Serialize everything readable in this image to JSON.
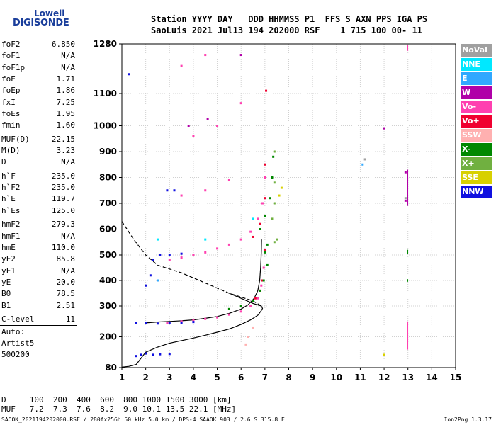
{
  "logo": {
    "line1": "Lowell",
    "line2": "DIGISONDE"
  },
  "header": {
    "line1": "Station YYYY DAY   DDD HHMMSS P1  FFS S AXN PPS IGA PS",
    "line2": "SaoLuis 2021 Jul13 194 202000 RSF    1 715 100 00- 11"
  },
  "params": {
    "group1": [
      {
        "k": "foF2",
        "v": "6.850"
      },
      {
        "k": "foF1",
        "v": "N/A"
      },
      {
        "k": "foF1p",
        "v": "N/A"
      },
      {
        "k": "foE",
        "v": "1.71"
      },
      {
        "k": "foEp",
        "v": "1.86"
      },
      {
        "k": "fxI",
        "v": "7.25"
      },
      {
        "k": "foEs",
        "v": "1.95"
      },
      {
        "k": "fmin",
        "v": "1.60"
      }
    ],
    "group2": [
      {
        "k": "MUF(D)",
        "v": "22.15"
      },
      {
        "k": "M(D)",
        "v": "3.23"
      },
      {
        "k": "D",
        "v": "N/A"
      }
    ],
    "group3": [
      {
        "k": "h`F",
        "v": "235.0"
      },
      {
        "k": "h`F2",
        "v": "235.0"
      },
      {
        "k": "h`E",
        "v": "119.7"
      },
      {
        "k": "h`Es",
        "v": "125.0"
      }
    ],
    "group4": [
      {
        "k": "hmF2",
        "v": "279.3"
      },
      {
        "k": "hmF1",
        "v": "N/A"
      },
      {
        "k": "hmE",
        "v": "110.0"
      },
      {
        "k": "yF2",
        "v": "85.8"
      },
      {
        "k": "yF1",
        "v": "N/A"
      },
      {
        "k": "yE",
        "v": "20.0"
      },
      {
        "k": "B0",
        "v": "78.5"
      },
      {
        "k": "B1",
        "v": "2.51"
      }
    ],
    "group5": [
      {
        "k": "C-level",
        "v": "11"
      }
    ],
    "auto_label": "Auto:",
    "artist": "Artist5",
    "code": "500200"
  },
  "legend": [
    {
      "label": "NoVal",
      "color": "#a0a0a0"
    },
    {
      "label": "NNE",
      "color": "#00e8ff"
    },
    {
      "label": "E",
      "color": "#30a8ff"
    },
    {
      "label": "W",
      "color": "#b000a8"
    },
    {
      "label": "Vo-",
      "color": "#ff40b0"
    },
    {
      "label": "Vo+",
      "color": "#f00030"
    },
    {
      "label": "SSW",
      "color": "#ffb0b0"
    },
    {
      "label": "X-",
      "color": "#008800"
    },
    {
      "label": "X+",
      "color": "#70b040"
    },
    {
      "label": "SSE",
      "color": "#d8d000"
    },
    {
      "label": "NNW",
      "color": "#1010e0"
    }
  ],
  "footer": {
    "line1": "D     100  200  400  600  800 1000 1500 3000 [km]",
    "line2": "MUF   7.2  7.3  7.6  8.2  9.0 10.1 13.5 22.1 [MHz]"
  },
  "bottom_line": "SAOOK_2021194202000.RSF / 280fx256h 50 kHz 5.0 km / DPS-4 SAAOK 903 / 2.6 S 315.8 E",
  "version": "Ion2Png 1.3.17",
  "chart_data": {
    "type": "scatter",
    "x_ticks": [
      1,
      2,
      3,
      4,
      5,
      6,
      7,
      8,
      9,
      10,
      11,
      12,
      13,
      14,
      15
    ],
    "y_ticks": [
      80,
      200,
      300,
      400,
      500,
      600,
      700,
      800,
      900,
      1000,
      1100,
      1280
    ],
    "xlim": [
      1,
      15
    ],
    "ylim": [
      80,
      1280
    ],
    "grid": true,
    "traces": [
      {
        "name": "Vo-",
        "color": "#ff40b0",
        "points": [
          [
            2.9,
            245
          ],
          [
            3.5,
            250
          ],
          [
            4.0,
            253
          ],
          [
            4.5,
            258
          ],
          [
            5.0,
            263
          ],
          [
            5.5,
            272
          ],
          [
            6.0,
            282
          ],
          [
            6.4,
            300
          ],
          [
            6.7,
            330
          ],
          [
            6.85,
            380
          ],
          [
            6.95,
            450
          ],
          [
            3.0,
            480
          ],
          [
            3.5,
            490
          ],
          [
            4.0,
            500
          ],
          [
            4.5,
            510
          ],
          [
            5.0,
            525
          ],
          [
            5.5,
            540
          ],
          [
            6.0,
            560
          ],
          [
            6.4,
            590
          ],
          [
            6.7,
            640
          ],
          [
            6.9,
            700
          ],
          [
            7.0,
            800
          ],
          [
            3.5,
            730
          ],
          [
            4.5,
            750
          ],
          [
            5.5,
            790
          ],
          [
            4.0,
            960
          ],
          [
            5.0,
            1000
          ],
          [
            6.0,
            1070
          ],
          [
            3.5,
            1200
          ],
          [
            4.5,
            1240
          ]
        ]
      },
      {
        "name": "Vo+",
        "color": "#f00030",
        "points": [
          [
            6.6,
            330
          ],
          [
            6.8,
            360
          ],
          [
            6.9,
            400
          ],
          [
            7.0,
            520
          ],
          [
            6.5,
            570
          ],
          [
            6.8,
            620
          ],
          [
            7.0,
            650
          ],
          [
            7.0,
            720
          ],
          [
            7.0,
            850
          ],
          [
            7.05,
            1110
          ]
        ]
      },
      {
        "name": "X-",
        "color": "#008800",
        "points": [
          [
            5.5,
            290
          ],
          [
            6.0,
            300
          ],
          [
            6.5,
            320
          ],
          [
            6.8,
            360
          ],
          [
            6.95,
            400
          ],
          [
            7.1,
            460
          ],
          [
            7.1,
            540
          ],
          [
            6.8,
            600
          ],
          [
            7.0,
            650
          ],
          [
            7.2,
            720
          ],
          [
            7.3,
            800
          ],
          [
            7.35,
            880
          ],
          [
            7.0,
            510
          ]
        ]
      },
      {
        "name": "X+",
        "color": "#70b040",
        "points": [
          [
            7.4,
            550
          ],
          [
            7.5,
            560
          ],
          [
            7.3,
            640
          ],
          [
            7.4,
            700
          ],
          [
            7.4,
            780
          ],
          [
            7.4,
            900
          ]
        ]
      },
      {
        "name": "NNW",
        "color": "#1010e0",
        "points": [
          [
            1.6,
            125
          ],
          [
            1.8,
            130
          ],
          [
            2.0,
            135
          ],
          [
            2.3,
            130
          ],
          [
            2.6,
            132
          ],
          [
            3.0,
            133
          ],
          [
            1.6,
            245
          ],
          [
            2.0,
            245
          ],
          [
            2.5,
            243
          ],
          [
            3.0,
            245
          ],
          [
            3.5,
            245
          ],
          [
            4.0,
            248
          ],
          [
            2.3,
            480
          ],
          [
            2.6,
            500
          ],
          [
            3.0,
            500
          ],
          [
            3.5,
            505
          ],
          [
            2.9,
            750
          ],
          [
            3.2,
            750
          ],
          [
            2.0,
            380
          ],
          [
            2.2,
            420
          ],
          [
            1.3,
            1170
          ]
        ]
      },
      {
        "name": "NNE",
        "color": "#00e8ff",
        "points": [
          [
            4.5,
            560
          ],
          [
            6.5,
            640
          ],
          [
            2.5,
            560
          ]
        ]
      },
      {
        "name": "E",
        "color": "#30a8ff",
        "points": [
          [
            11.1,
            850
          ],
          [
            2.5,
            400
          ]
        ]
      },
      {
        "name": "W",
        "color": "#b000a8",
        "points": [
          [
            3.8,
            1000
          ],
          [
            4.6,
            1020
          ],
          [
            6.0,
            1240
          ],
          [
            12.9,
            710
          ],
          [
            12.9,
            820
          ],
          [
            12.0,
            990
          ]
        ]
      },
      {
        "name": "SSE",
        "color": "#d8d000",
        "points": [
          [
            7.6,
            730
          ],
          [
            7.7,
            760
          ],
          [
            12.0,
            130
          ]
        ]
      },
      {
        "name": "SSW",
        "color": "#ffb0b0",
        "points": [
          [
            6.2,
            170
          ],
          [
            6.3,
            200
          ],
          [
            6.5,
            230
          ]
        ]
      },
      {
        "name": "NoVal",
        "color": "#a0a0a0",
        "points": [
          [
            11.2,
            870
          ],
          [
            12.9,
            720
          ]
        ]
      }
    ],
    "vertical_marks": [
      {
        "x": 12.98,
        "y_from": 690,
        "y_to": 830,
        "color": "#b000a8"
      },
      {
        "x": 12.98,
        "y_from": 150,
        "y_to": 250,
        "color": "#ff40b0"
      },
      {
        "x": 12.98,
        "y_from": 1255,
        "y_to": 1275,
        "color": "#ff40b0"
      },
      {
        "x": 12.98,
        "y_from": 505,
        "y_to": 520,
        "color": "#008800"
      },
      {
        "x": 12.98,
        "y_from": 395,
        "y_to": 405,
        "color": "#008800"
      }
    ],
    "profile_solid": [
      [
        1.0,
        82
      ],
      [
        1.3,
        85
      ],
      [
        1.6,
        92
      ],
      [
        1.75,
        110
      ],
      [
        2.0,
        140
      ],
      [
        2.5,
        160
      ],
      [
        3.0,
        175
      ],
      [
        3.5,
        185
      ],
      [
        4.0,
        195
      ],
      [
        4.5,
        205
      ],
      [
        5.0,
        215
      ],
      [
        5.5,
        225
      ],
      [
        6.0,
        240
      ],
      [
        6.4,
        255
      ],
      [
        6.7,
        270
      ],
      [
        6.85,
        285
      ],
      [
        6.9,
        292
      ],
      [
        6.85,
        300
      ],
      [
        6.5,
        310
      ],
      [
        6.0,
        330
      ],
      [
        5.5,
        350
      ]
    ],
    "profile_dashed": [
      [
        1.0,
        630
      ],
      [
        1.5,
        560
      ],
      [
        2.0,
        500
      ],
      [
        2.5,
        460
      ],
      [
        3.0,
        445
      ],
      [
        3.5,
        430
      ],
      [
        4.0,
        410
      ],
      [
        4.5,
        390
      ],
      [
        5.0,
        370
      ],
      [
        5.5,
        350
      ],
      [
        6.0,
        335
      ],
      [
        6.5,
        320
      ],
      [
        6.85,
        300
      ]
    ],
    "trace_solid": [
      [
        2.0,
        245
      ],
      [
        2.5,
        248
      ],
      [
        3.0,
        250
      ],
      [
        3.5,
        252
      ],
      [
        4.0,
        255
      ],
      [
        4.5,
        260
      ],
      [
        5.0,
        266
      ],
      [
        5.5,
        276
      ],
      [
        6.0,
        290
      ],
      [
        6.3,
        305
      ],
      [
        6.55,
        330
      ],
      [
        6.7,
        360
      ],
      [
        6.78,
        400
      ],
      [
        6.82,
        450
      ],
      [
        6.85,
        510
      ],
      [
        6.86,
        560
      ]
    ]
  }
}
